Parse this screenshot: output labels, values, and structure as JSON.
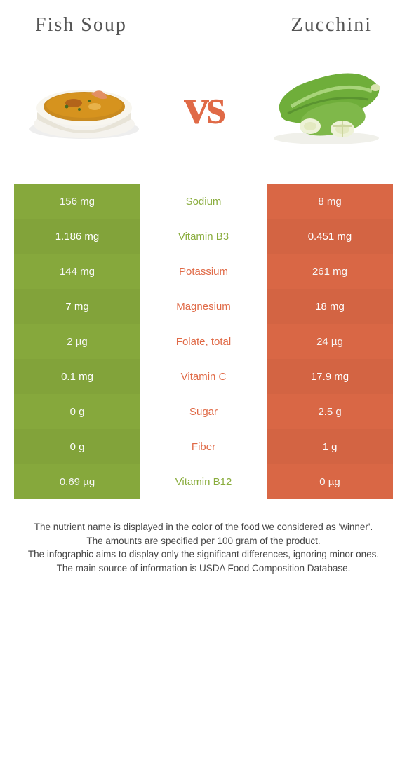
{
  "header": {
    "left_title": "Fish soup",
    "right_title": "Zucchini",
    "vs_label": "vs"
  },
  "colors": {
    "left_bg": "#8aad3e",
    "right_bg": "#e06a47",
    "left_text": "#8aad3e",
    "right_text": "#e06a47",
    "row_alt_darken": 0.94
  },
  "table": {
    "rows": [
      {
        "left": "156 mg",
        "label": "Sodium",
        "right": "8 mg",
        "winner": "left"
      },
      {
        "left": "1.186 mg",
        "label": "Vitamin B3",
        "right": "0.451 mg",
        "winner": "left"
      },
      {
        "left": "144 mg",
        "label": "Potassium",
        "right": "261 mg",
        "winner": "right"
      },
      {
        "left": "7 mg",
        "label": "Magnesium",
        "right": "18 mg",
        "winner": "right"
      },
      {
        "left": "2 µg",
        "label": "Folate, total",
        "right": "24 µg",
        "winner": "right"
      },
      {
        "left": "0.1 mg",
        "label": "Vitamin C",
        "right": "17.9 mg",
        "winner": "right"
      },
      {
        "left": "0 g",
        "label": "Sugar",
        "right": "2.5 g",
        "winner": "right"
      },
      {
        "left": "0 g",
        "label": "Fiber",
        "right": "1 g",
        "winner": "right"
      },
      {
        "left": "0.69 µg",
        "label": "Vitamin B12",
        "right": "0 µg",
        "winner": "left"
      }
    ]
  },
  "footnote": {
    "line1": "The nutrient name is displayed in the color of the food we considered as 'winner'.",
    "line2": "The amounts are specified per 100 gram of the product.",
    "line3": "The infographic aims to display only the significant differences, ignoring minor ones.",
    "line4": "The main source of information is USDA Food Composition Database."
  }
}
